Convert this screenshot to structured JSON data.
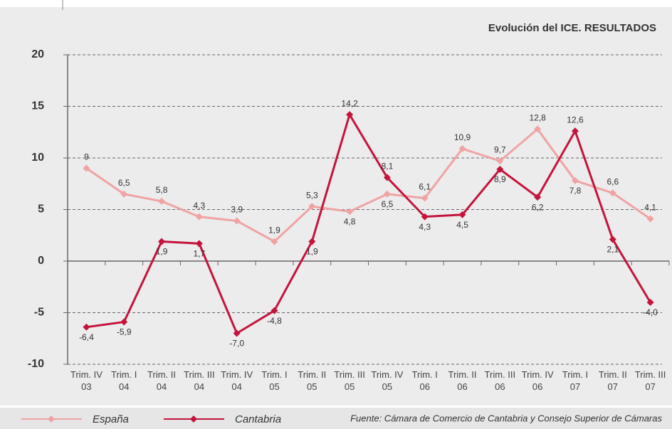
{
  "chart_data": {
    "type": "line",
    "title": "Evolución del ICE. RESULTADOS",
    "categories": [
      "Trim. IV\n03",
      "Trim. I\n04",
      "Trim. II\n04",
      "Trim. III\n04",
      "Trim. IV\n04",
      "Trim. I\n05",
      "Trim. II\n05",
      "Trim. III\n05",
      "Trim. IV\n05",
      "Trim. I\n06",
      "Trim. II\n06",
      "Trim. III\n06",
      "Trim. IV\n06",
      "Trim. I\n07",
      "Trim. II\n07",
      "Trim. III\n07"
    ],
    "series": [
      {
        "name": "España",
        "color": "#f0a3a3",
        "values": [
          9,
          6.5,
          5.8,
          4.3,
          3.9,
          1.9,
          5.3,
          4.8,
          6.5,
          6.1,
          10.9,
          9.7,
          12.8,
          7.8,
          6.6,
          4.1
        ],
        "value_labels": [
          "9",
          "6,5",
          "5,8",
          "4,3",
          "3,9",
          "1,9",
          "5,3",
          "4,8",
          "6,5",
          "6,1",
          "10,9",
          "9,7",
          "12,8",
          "7,8",
          "6,6",
          "4,1"
        ]
      },
      {
        "name": "Cantabria",
        "color": "#c4143c",
        "values": [
          -6.4,
          -5.9,
          1.9,
          1.7,
          -7.0,
          -4.8,
          1.9,
          14.2,
          8.1,
          4.3,
          4.5,
          8.9,
          6.2,
          12.6,
          2.1,
          -4.0
        ],
        "value_labels": [
          "-6,4",
          "-5,9",
          "1,9",
          "1,7",
          "-7,0",
          "-4,8",
          "1,9",
          "14,2",
          "8,1",
          "4,3",
          "4,5",
          "8,9",
          "6,2",
          "12,6",
          "2,1",
          "-4,0"
        ]
      }
    ],
    "ylim": [
      -10,
      20
    ],
    "yticks": [
      -10,
      -5,
      0,
      5,
      10,
      15,
      20
    ],
    "grid": true,
    "source": "Fuente: Cámara de Comercio de Cantabria y Consejo Superior de Cámaras"
  }
}
